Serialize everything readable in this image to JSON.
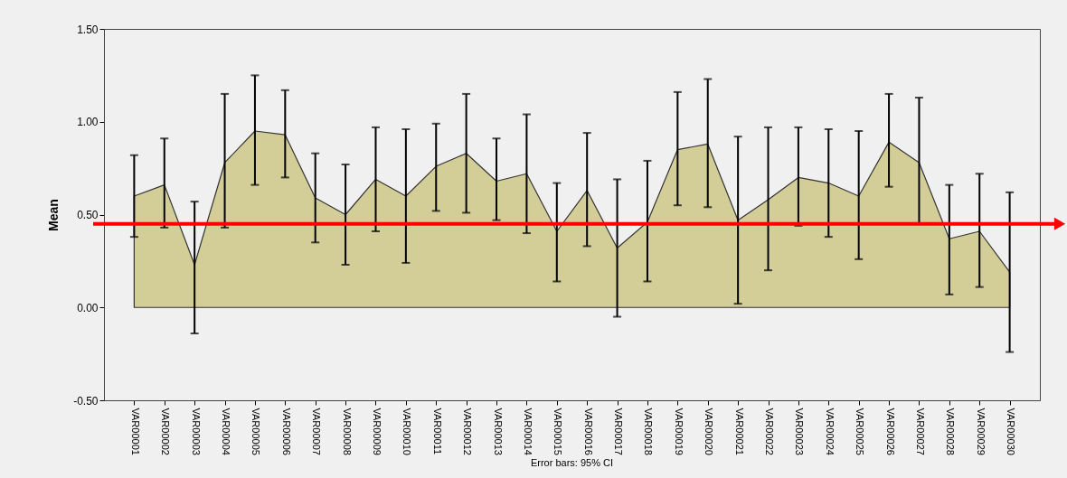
{
  "chart_data": {
    "type": "area",
    "ylabel": "Mean",
    "color": "#d3cd98",
    "categories": [
      "VAR00001",
      "VAR00002",
      "VAR00003",
      "VAR00004",
      "VAR00005",
      "VAR00006",
      "VAR00007",
      "VAR00008",
      "VAR00009",
      "VAR00010",
      "VAR00011",
      "VAR00012",
      "VAR00013",
      "VAR00014",
      "VAR00015",
      "VAR00016",
      "VAR00017",
      "VAR00018",
      "VAR00019",
      "VAR00020",
      "VAR00021",
      "VAR00022",
      "VAR00023",
      "VAR00024",
      "VAR00025",
      "VAR00026",
      "VAR00027",
      "VAR00028",
      "VAR00029",
      "VAR00030"
    ],
    "values": [
      0.6,
      0.66,
      0.23,
      0.78,
      0.95,
      0.93,
      0.59,
      0.5,
      0.69,
      0.6,
      0.76,
      0.83,
      0.68,
      0.72,
      0.41,
      0.63,
      0.32,
      0.46,
      0.85,
      0.88,
      0.47,
      0.58,
      0.7,
      0.67,
      0.6,
      0.89,
      0.78,
      0.37,
      0.41,
      0.19
    ],
    "errors": [
      [
        0.38,
        0.82
      ],
      [
        0.43,
        0.91
      ],
      [
        -0.14,
        0.57
      ],
      [
        0.43,
        1.15
      ],
      [
        0.66,
        1.25
      ],
      [
        0.7,
        1.17
      ],
      [
        0.35,
        0.83
      ],
      [
        0.23,
        0.77
      ],
      [
        0.41,
        0.97
      ],
      [
        0.24,
        0.96
      ],
      [
        0.52,
        0.99
      ],
      [
        0.51,
        1.15
      ],
      [
        0.47,
        0.91
      ],
      [
        0.4,
        1.04
      ],
      [
        0.14,
        0.67
      ],
      [
        0.33,
        0.94
      ],
      [
        -0.05,
        0.69
      ],
      [
        0.14,
        0.79
      ],
      [
        0.55,
        1.16
      ],
      [
        0.54,
        1.23
      ],
      [
        0.02,
        0.92
      ],
      [
        0.2,
        0.97
      ],
      [
        0.44,
        0.97
      ],
      [
        0.38,
        0.96
      ],
      [
        0.26,
        0.95
      ],
      [
        0.65,
        1.15
      ],
      [
        0.45,
        1.13
      ],
      [
        0.07,
        0.66
      ],
      [
        0.11,
        0.72
      ],
      [
        -0.24,
        0.62
      ]
    ],
    "ylim": [
      -0.5,
      1.5
    ],
    "yticks": [
      {
        "value": -0.5,
        "label": "-0.50"
      },
      {
        "value": 0,
        "label": "0.00"
      },
      {
        "value": 0.5,
        "label": "0.50"
      },
      {
        "value": 1,
        "label": "1.00"
      },
      {
        "value": 1.5,
        "label": "1.50"
      }
    ],
    "ref_lines": [
      {
        "axis": "y",
        "value": 0.45,
        "color": "#ff0000"
      }
    ],
    "annotations": [
      "Error bars: 95% CI"
    ]
  }
}
